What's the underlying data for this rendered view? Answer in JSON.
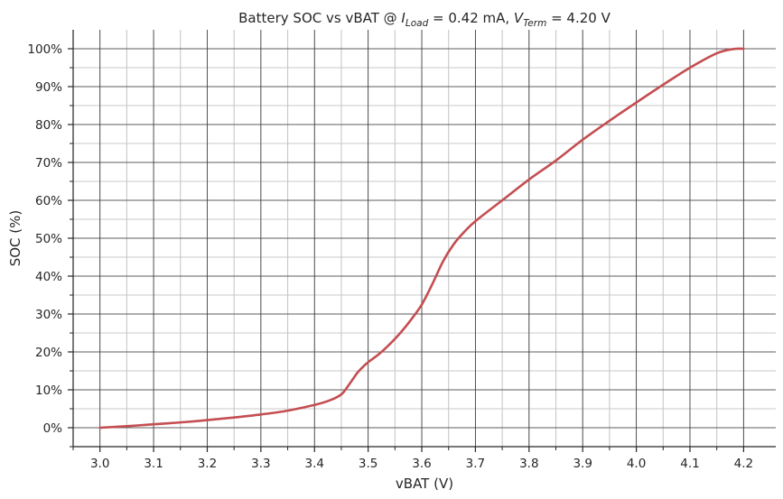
{
  "chart_data": {
    "type": "line",
    "title": {
      "main": "Battery SOC vs vBAT @ ",
      "i_symbol": "I",
      "i_sub": "Load",
      "i_value": " = 0.42 mA, ",
      "v_symbol": "V",
      "v_sub": "Term",
      "v_value": " = 4.20 V"
    },
    "xlabel": "vBAT (V)",
    "ylabel": "SOC (%)",
    "xlim": [
      2.95,
      4.26
    ],
    "ylim": [
      -5,
      105
    ],
    "x_ticks": [
      "3.0",
      "3.1",
      "3.2",
      "3.3",
      "3.4",
      "3.5",
      "3.6",
      "3.7",
      "3.8",
      "3.9",
      "4.0",
      "4.1",
      "4.2"
    ],
    "y_ticks": [
      "0%",
      "10%",
      "20%",
      "30%",
      "40%",
      "50%",
      "60%",
      "70%",
      "80%",
      "90%",
      "100%"
    ],
    "grid": true,
    "legend": "none",
    "line_color": "#c44e52",
    "series": [
      {
        "x": [
          3.0,
          3.05,
          3.1,
          3.15,
          3.2,
          3.25,
          3.3,
          3.35,
          3.4,
          3.43,
          3.45,
          3.46,
          3.47,
          3.48,
          3.49,
          3.5,
          3.52,
          3.54,
          3.56,
          3.58,
          3.6,
          3.62,
          3.64,
          3.66,
          3.68,
          3.7,
          3.75,
          3.8,
          3.85,
          3.9,
          3.95,
          4.0,
          4.05,
          4.1,
          4.15,
          4.18,
          4.2
        ],
        "y": [
          0,
          0.4,
          0.9,
          1.4,
          2.0,
          2.7,
          3.5,
          4.5,
          6.0,
          7.3,
          8.8,
          10.5,
          12.5,
          14.5,
          16.0,
          17.3,
          19.4,
          22.0,
          25.0,
          28.5,
          32.5,
          38.0,
          44.0,
          48.5,
          51.8,
          54.5,
          60.0,
          65.5,
          70.5,
          76.0,
          81.0,
          85.8,
          90.5,
          95.0,
          98.8,
          99.9,
          100.0
        ]
      }
    ]
  }
}
